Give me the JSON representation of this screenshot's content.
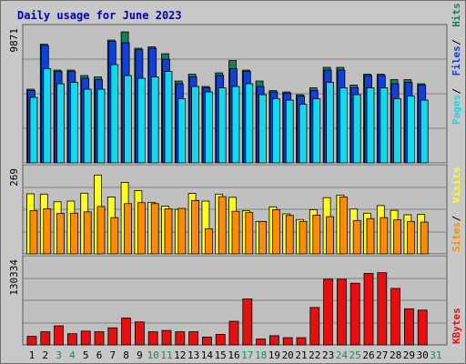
{
  "title": "Daily usage for June 2023",
  "colors": {
    "background": "#c8c8c8",
    "panel": "#c0c0c0",
    "title": "#0000b0",
    "hits": "#1a7a5a",
    "files": "#1040d8",
    "pages": "#14d8ee",
    "visits": "#ffff20",
    "sites": "#ff8c00",
    "kbytes": "#e61010",
    "weekend_day": "#1a8a5a",
    "weekday": "#000000"
  },
  "chart_data": [
    {
      "type": "bar",
      "title": "Daily usage for June 2023",
      "x": [
        1,
        2,
        3,
        4,
        5,
        6,
        7,
        8,
        9,
        10,
        11,
        12,
        13,
        14,
        15,
        16,
        17,
        18,
        19,
        20,
        21,
        22,
        23,
        24,
        25,
        26,
        27,
        28,
        29,
        30,
        31
      ],
      "weekend_days": [
        3,
        4,
        10,
        11,
        17,
        18,
        24,
        25,
        31
      ],
      "ymax_label": "9871",
      "ylim": [
        0,
        9871
      ],
      "series": [
        {
          "name": "Hits",
          "values": [
            5400,
            8700,
            6800,
            6800,
            6400,
            6300,
            9000,
            9600,
            8400,
            8500,
            8000,
            6000,
            6500,
            5600,
            6600,
            7500,
            6800,
            6000,
            5300,
            5200,
            5000,
            5500,
            7000,
            7000,
            5700,
            6500,
            6500,
            6100,
            6100,
            5800,
            null
          ]
        },
        {
          "name": "Files",
          "values": [
            5300,
            8600,
            6700,
            6700,
            6200,
            6100,
            8900,
            8800,
            8300,
            8400,
            7600,
            5800,
            6300,
            5500,
            6400,
            6900,
            6700,
            5600,
            5200,
            5100,
            4900,
            5300,
            6800,
            6800,
            5500,
            6400,
            6400,
            5800,
            5900,
            5700,
            null
          ]
        },
        {
          "name": "Pages",
          "values": [
            4800,
            6900,
            5800,
            5900,
            5400,
            5400,
            7200,
            6400,
            6200,
            6300,
            6700,
            4700,
            5600,
            5200,
            5500,
            5600,
            5800,
            5000,
            4700,
            4600,
            4300,
            4700,
            5900,
            5500,
            5000,
            5500,
            5500,
            4700,
            4900,
            4600,
            null
          ]
        }
      ],
      "ylabel": "Pages / Files / Hits"
    },
    {
      "type": "bar",
      "x": [
        1,
        2,
        3,
        4,
        5,
        6,
        7,
        8,
        9,
        10,
        11,
        12,
        13,
        14,
        15,
        16,
        17,
        18,
        19,
        20,
        21,
        22,
        23,
        24,
        25,
        26,
        27,
        28,
        29,
        30,
        31
      ],
      "ymax_label": "269",
      "ylim": [
        0,
        269
      ],
      "series": [
        {
          "name": "Visits",
          "values": [
            189,
            188,
            164,
            166,
            191,
            248,
            179,
            225,
            199,
            162,
            150,
            140,
            190,
            166,
            188,
            178,
            136,
            102,
            148,
            126,
            108,
            139,
            177,
            185,
            141,
            128,
            152,
            137,
            123,
            124,
            null
          ]
        },
        {
          "name": "Sites",
          "values": [
            136,
            142,
            127,
            128,
            132,
            149,
            114,
            158,
            161,
            158,
            142,
            143,
            168,
            79,
            180,
            134,
            130,
            102,
            139,
            121,
            102,
            122,
            117,
            179,
            105,
            111,
            114,
            107,
            102,
            100,
            null
          ]
        }
      ],
      "ylabel": "Sites / Visits"
    },
    {
      "type": "bar",
      "x": [
        1,
        2,
        3,
        4,
        5,
        6,
        7,
        8,
        9,
        10,
        11,
        12,
        13,
        14,
        15,
        16,
        17,
        18,
        19,
        20,
        21,
        22,
        23,
        24,
        25,
        26,
        27,
        28,
        29,
        30,
        31
      ],
      "ymax_label": "130334",
      "ylim": [
        0,
        130334
      ],
      "series": [
        {
          "name": "KBytes",
          "values": [
            13000,
            20000,
            29000,
            17000,
            21000,
            20000,
            26000,
            41000,
            35000,
            20000,
            22000,
            20000,
            20000,
            12000,
            16000,
            36000,
            70000,
            9000,
            14000,
            11000,
            11000,
            57000,
            100000,
            100000,
            94000,
            109000,
            110000,
            86000,
            55000,
            53000,
            null
          ]
        }
      ],
      "ylabel": "KBytes"
    }
  ]
}
